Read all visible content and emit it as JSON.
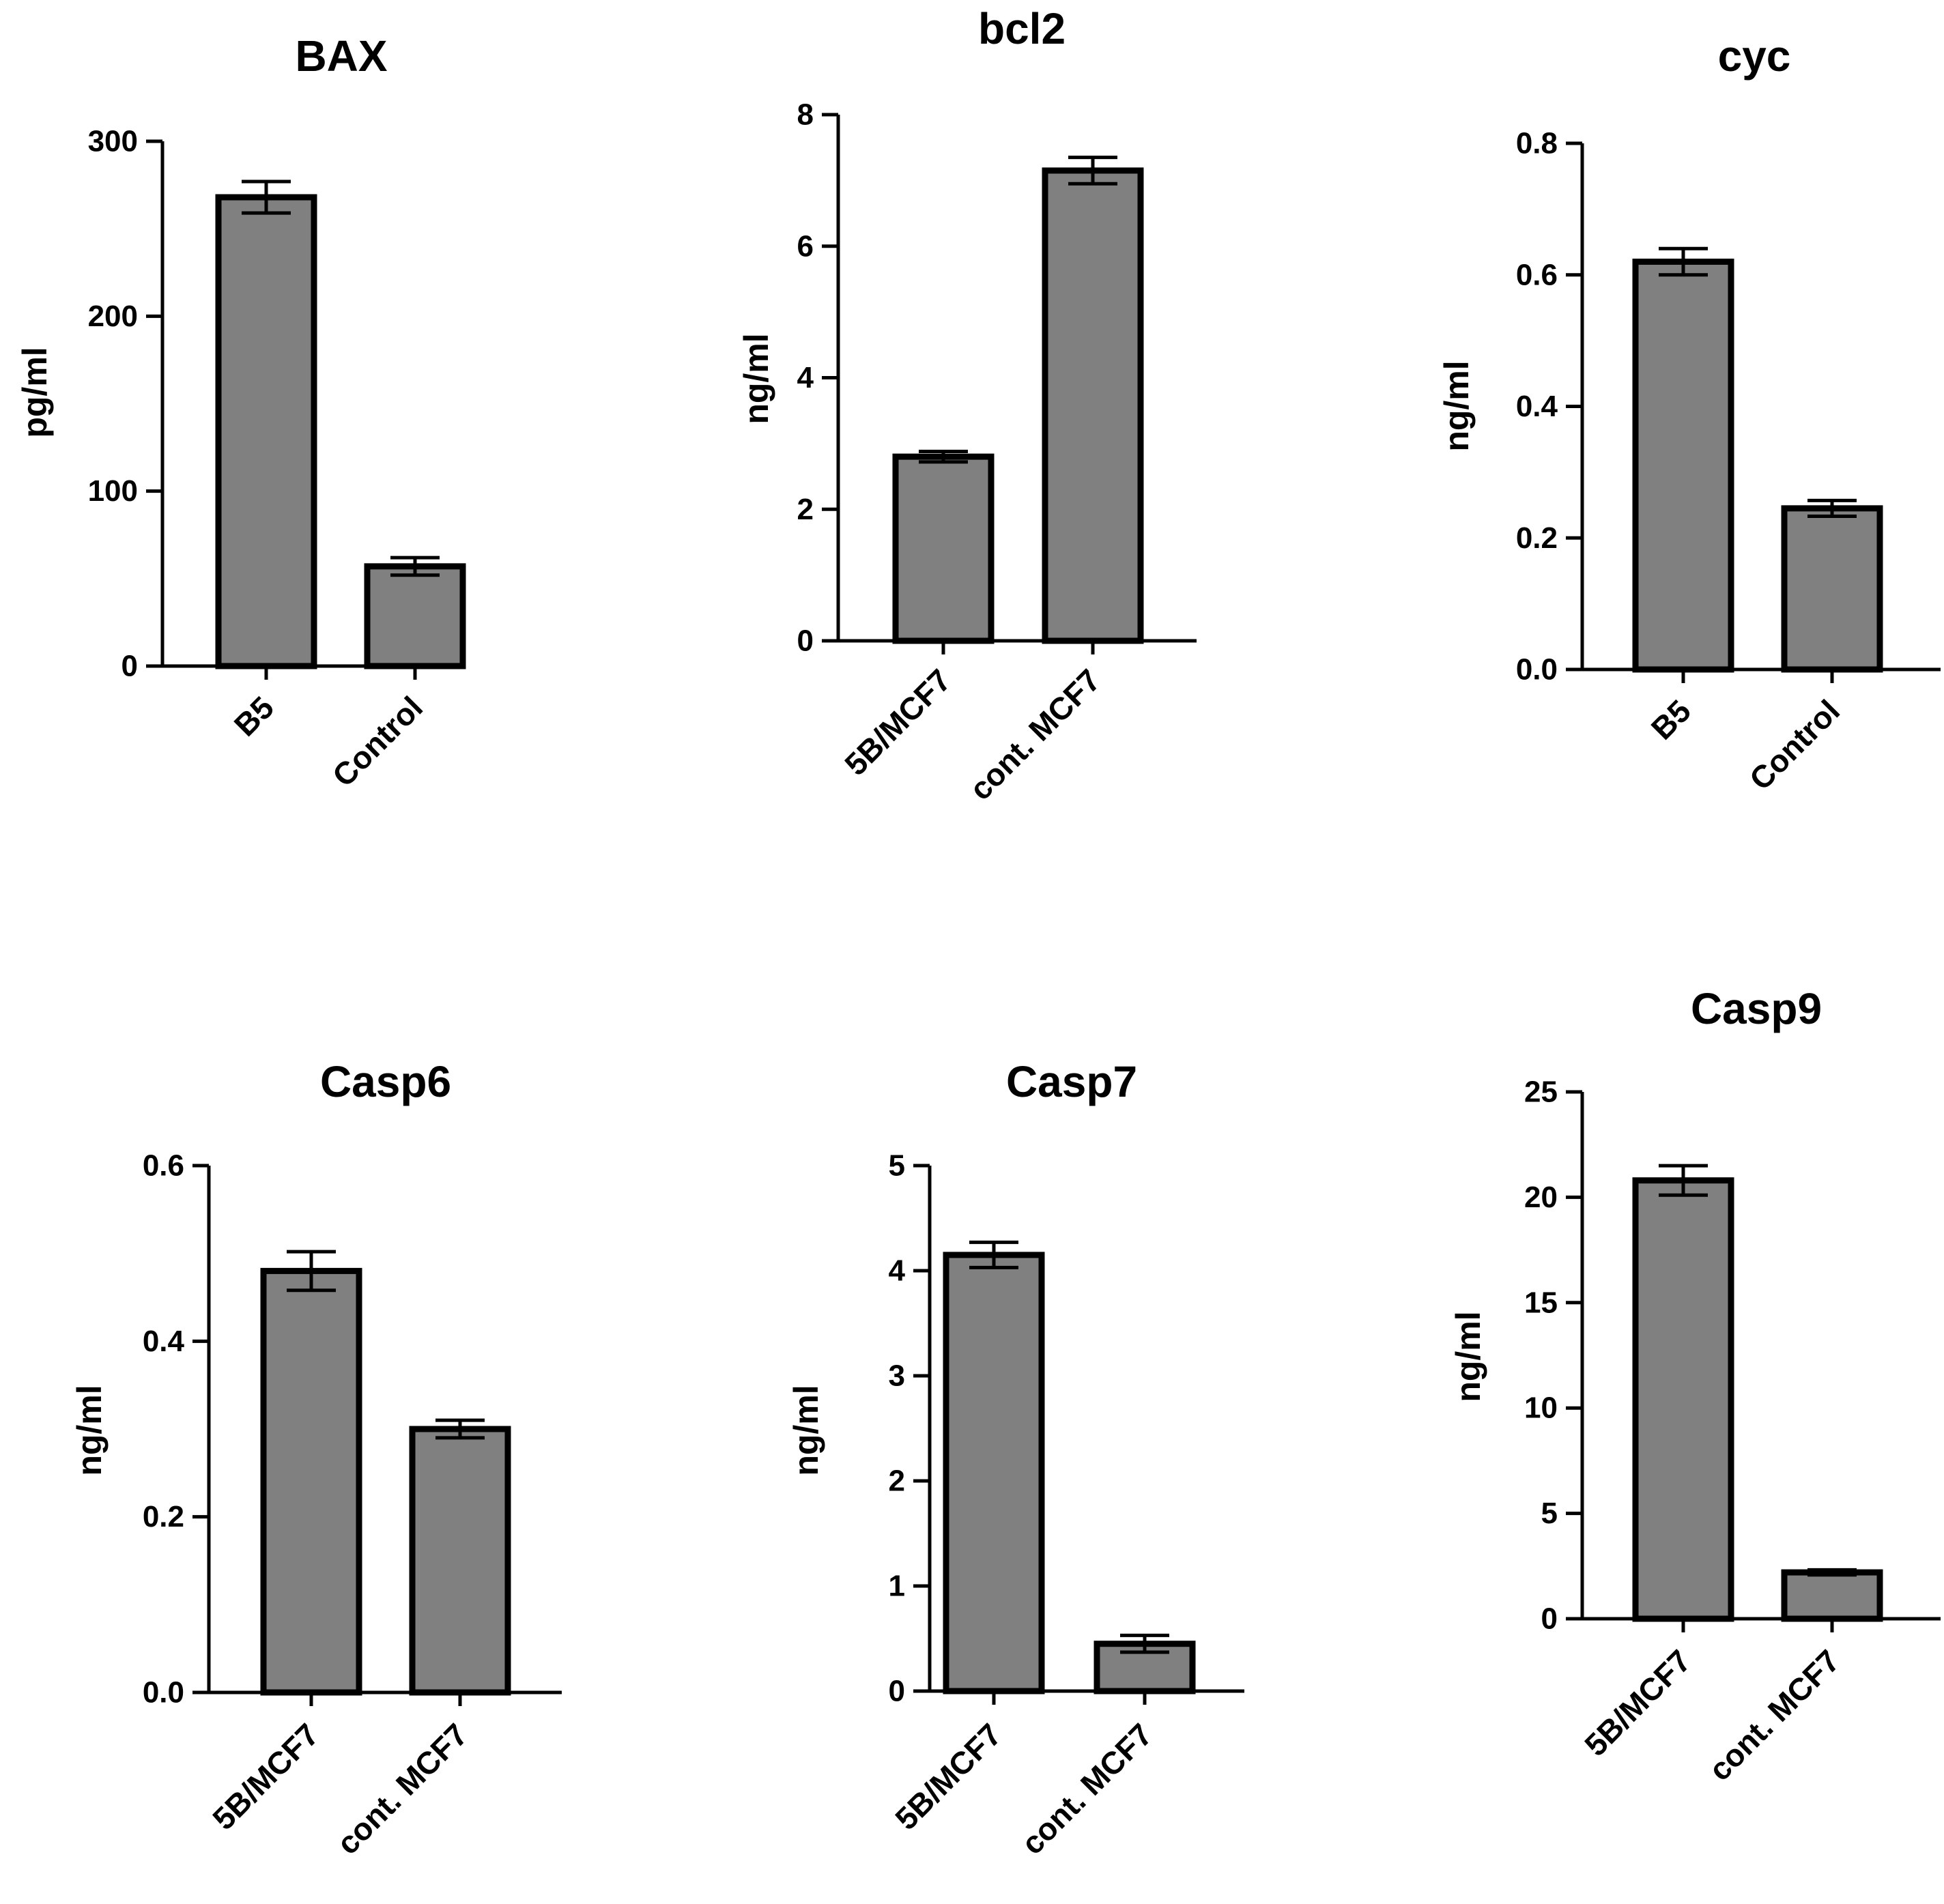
{
  "chart_data": [
    {
      "type": "bar",
      "title": "BAX",
      "ylabel": "pg/ml",
      "xlabel": "",
      "categories": [
        "B5",
        "Control"
      ],
      "values": [
        268,
        57
      ],
      "errors": [
        9,
        5
      ],
      "ylim": [
        0,
        300
      ],
      "yticks": [
        0,
        100,
        200,
        300
      ],
      "ytick_labels": [
        "0",
        "100",
        "200",
        "300"
      ],
      "bar_color": "#808080"
    },
    {
      "type": "bar",
      "title": "bcl2",
      "ylabel": "ng/ml",
      "xlabel": "",
      "categories": [
        "5B/MCF7",
        "cont. MCF7"
      ],
      "values": [
        2.8,
        7.15
      ],
      "errors": [
        0.08,
        0.2
      ],
      "ylim": [
        0,
        8
      ],
      "yticks": [
        0,
        2,
        4,
        6,
        8
      ],
      "ytick_labels": [
        "0",
        "2",
        "4",
        "6",
        "8"
      ],
      "bar_color": "#808080"
    },
    {
      "type": "bar",
      "title": "cyc",
      "ylabel": "ng/ml",
      "xlabel": "",
      "categories": [
        "B5",
        "Control"
      ],
      "values": [
        0.62,
        0.245
      ],
      "errors": [
        0.02,
        0.012
      ],
      "ylim": [
        0,
        0.8
      ],
      "yticks": [
        0,
        0.2,
        0.4,
        0.6,
        0.8
      ],
      "ytick_labels": [
        "0.0",
        "0.2",
        "0.4",
        "0.6",
        "0.8"
      ],
      "bar_color": "#808080"
    },
    {
      "type": "bar",
      "title": "Casp6",
      "ylabel": "ng/ml",
      "xlabel": "",
      "categories": [
        "5B/MCF7",
        "cont. MCF7"
      ],
      "values": [
        0.48,
        0.3
      ],
      "errors": [
        0.022,
        0.01
      ],
      "ylim": [
        0,
        0.6
      ],
      "yticks": [
        0,
        0.2,
        0.4,
        0.6
      ],
      "ytick_labels": [
        "0.0",
        "0.2",
        "0.4",
        "0.6"
      ],
      "bar_color": "#808080"
    },
    {
      "type": "bar",
      "title": "Casp7",
      "ylabel": "ng/ml",
      "xlabel": "",
      "categories": [
        "5B/MCF7",
        "cont. MCF7"
      ],
      "values": [
        4.15,
        0.45
      ],
      "errors": [
        0.12,
        0.08
      ],
      "ylim": [
        0,
        5
      ],
      "yticks": [
        0,
        1,
        2,
        3,
        4,
        5
      ],
      "ytick_labels": [
        "0",
        "1",
        "2",
        "3",
        "4",
        "5"
      ],
      "bar_color": "#808080"
    },
    {
      "type": "bar",
      "title": "Casp9",
      "ylabel": "ng/ml",
      "xlabel": "",
      "categories": [
        "5B/MCF7",
        "cont. MCF7"
      ],
      "values": [
        20.8,
        2.2
      ],
      "errors": [
        0.7,
        0.12
      ],
      "ylim": [
        0,
        25
      ],
      "yticks": [
        0,
        5,
        10,
        15,
        20,
        25
      ],
      "ytick_labels": [
        "0",
        "5",
        "10",
        "15",
        "20",
        "25"
      ],
      "bar_color": "#808080"
    }
  ]
}
